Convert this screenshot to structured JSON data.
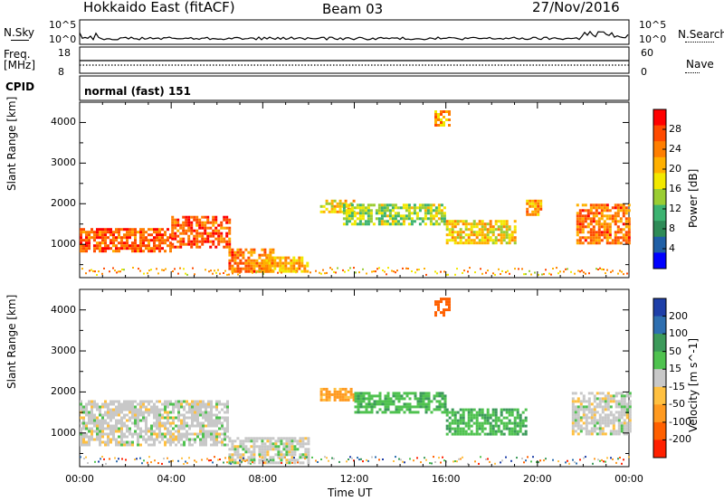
{
  "header": {
    "station": "Hokkaido East (fitACF)",
    "beam": "Beam 03",
    "date": "27/Nov/2016"
  },
  "strips": {
    "nsky_label": "N.Sky",
    "nsky_ticks": [
      "10^5",
      "10^0"
    ],
    "nsearch_label": "N.Search",
    "nsearch_ticks": [
      "10^5",
      "10^0"
    ],
    "freq_label": "Freq.",
    "freq_unit": "[MHz]",
    "freq_ticks": [
      "18",
      "8"
    ],
    "nave_label": "Nave",
    "nave_ticks": [
      "60",
      "0"
    ],
    "cpid_label": "CPID",
    "cpid_value": "normal (fast) 151"
  },
  "chart_data": [
    {
      "type": "heatmap",
      "name_panel": "power",
      "ylabel": "Slant Range [km]",
      "xlabel": "",
      "yticks": [
        "4000",
        "3000",
        "2000",
        "1000"
      ],
      "ylim": [
        180,
        4500
      ],
      "xlim": [
        0,
        24
      ],
      "colorbar_label": "Power [dB]",
      "colorbar_ticks": [
        "28",
        "24",
        "20",
        "16",
        "12",
        "8",
        "4"
      ],
      "colorbar_colors": [
        "#ff0000",
        "#ff4a00",
        "#ff7e00",
        "#ffb000",
        "#f2e800",
        "#9acd32",
        "#3cb371",
        "#2e8b57",
        "#1f5fa6",
        "#0000ff"
      ],
      "echo_regions": [
        {
          "t0": 0.0,
          "t1": 4.0,
          "r0": 800,
          "r1": 1400,
          "level": 26
        },
        {
          "t0": 4.0,
          "t1": 6.5,
          "r0": 900,
          "r1": 1700,
          "level": 26
        },
        {
          "t0": 6.5,
          "t1": 8.5,
          "r0": 300,
          "r1": 900,
          "level": 24
        },
        {
          "t0": 8.0,
          "t1": 10.0,
          "r0": 300,
          "r1": 700,
          "level": 20
        },
        {
          "t0": 10.5,
          "t1": 12.0,
          "r0": 1800,
          "r1": 2100,
          "level": 18
        },
        {
          "t0": 11.5,
          "t1": 16.0,
          "r0": 1500,
          "r1": 2000,
          "level": 14
        },
        {
          "t0": 16.0,
          "t1": 19.0,
          "r0": 1000,
          "r1": 1600,
          "level": 18
        },
        {
          "t0": 19.5,
          "t1": 20.2,
          "r0": 1700,
          "r1": 2100,
          "level": 22
        },
        {
          "t0": 21.7,
          "t1": 24.0,
          "r0": 1000,
          "r1": 2000,
          "level": 24
        },
        {
          "t0": 15.5,
          "t1": 16.2,
          "r0": 3900,
          "r1": 4300,
          "level": 22
        }
      ]
    },
    {
      "type": "heatmap",
      "name_panel": "velocity",
      "ylabel": "Slant Range [km]",
      "xlabel": "Time UT",
      "xticks": [
        "00:00",
        "04:00",
        "08:00",
        "12:00",
        "16:00",
        "20:00",
        "00:00"
      ],
      "yticks": [
        "4000",
        "3000",
        "2000",
        "1000"
      ],
      "ylim": [
        180,
        4500
      ],
      "xlim": [
        0,
        24
      ],
      "colorbar_label": "Velocity [m s^-1]",
      "colorbar_ticks": [
        "200",
        "100",
        "50",
        "15",
        "-15",
        "-50",
        "-100",
        "-200"
      ],
      "colorbar_colors": [
        "#1e3fa8",
        "#2e6fb0",
        "#3c9a5a",
        "#4fc24f",
        "#c8c8c8",
        "#ffc040",
        "#ff9a20",
        "#ff6000",
        "#ff2000"
      ],
      "echo_regions": [
        {
          "t0": 0.0,
          "t1": 6.5,
          "r0": 700,
          "r1": 1800,
          "level": 0
        },
        {
          "t0": 6.5,
          "t1": 10.0,
          "r0": 300,
          "r1": 900,
          "level": 0
        },
        {
          "t0": 10.5,
          "t1": 12.0,
          "r0": 1800,
          "r1": 2100,
          "level": -60
        },
        {
          "t0": 12.0,
          "t1": 16.0,
          "r0": 1500,
          "r1": 2000,
          "level": 40
        },
        {
          "t0": 16.0,
          "t1": 19.5,
          "r0": 1000,
          "r1": 1600,
          "level": 40
        },
        {
          "t0": 21.5,
          "t1": 24.0,
          "r0": 1000,
          "r1": 2000,
          "level": 0
        },
        {
          "t0": 15.5,
          "t1": 16.2,
          "r0": 3900,
          "r1": 4300,
          "level": -150
        }
      ]
    }
  ]
}
